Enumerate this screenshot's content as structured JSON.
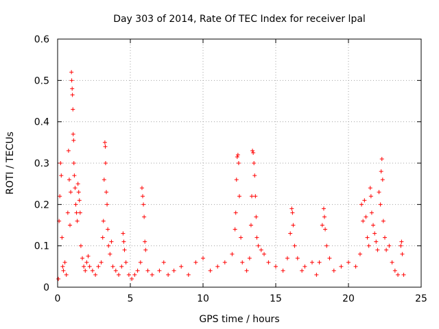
{
  "chart_data": {
    "type": "scatter",
    "title": "Day 303 of 2014, Rate Of TEC Index for receiver lpal",
    "xlabel": "GPS time / hours",
    "ylabel": "ROTI / TECUs",
    "xlim": [
      0,
      25
    ],
    "ylim": [
      0,
      0.6
    ],
    "xticks": [
      0,
      5,
      10,
      15,
      20,
      25
    ],
    "xtick_labels": [
      "0",
      "5",
      "10",
      "15",
      "20",
      "25"
    ],
    "yticks": [
      0,
      0.1,
      0.2,
      0.3,
      0.4,
      0.5,
      0.6
    ],
    "ytick_labels": [
      "0",
      "0.1",
      "0.2",
      "0.3",
      "0.4",
      "0.5",
      "0.6"
    ],
    "grid": true,
    "marker": "plus",
    "color": "#ff0000",
    "series": [
      {
        "name": "ROTI",
        "points": [
          [
            0.05,
            0.02
          ],
          [
            0.1,
            0.16
          ],
          [
            0.15,
            0.22
          ],
          [
            0.2,
            0.3
          ],
          [
            0.25,
            0.27
          ],
          [
            0.3,
            0.12
          ],
          [
            0.35,
            0.05
          ],
          [
            0.4,
            0.04
          ],
          [
            0.5,
            0.06
          ],
          [
            0.6,
            0.03
          ],
          [
            0.7,
            0.18
          ],
          [
            0.75,
            0.33
          ],
          [
            0.8,
            0.26
          ],
          [
            0.85,
            0.15
          ],
          [
            0.9,
            0.23
          ],
          [
            0.95,
            0.52
          ],
          [
            0.97,
            0.5
          ],
          [
            1.0,
            0.48
          ],
          [
            1.02,
            0.465
          ],
          [
            1.05,
            0.43
          ],
          [
            1.07,
            0.37
          ],
          [
            1.1,
            0.355
          ],
          [
            1.12,
            0.3
          ],
          [
            1.15,
            0.27
          ],
          [
            1.2,
            0.24
          ],
          [
            1.25,
            0.2
          ],
          [
            1.3,
            0.18
          ],
          [
            1.35,
            0.16
          ],
          [
            1.4,
            0.25
          ],
          [
            1.45,
            0.23
          ],
          [
            1.5,
            0.21
          ],
          [
            1.55,
            0.18
          ],
          [
            1.6,
            0.1
          ],
          [
            1.7,
            0.07
          ],
          [
            1.8,
            0.05
          ],
          [
            1.9,
            0.04
          ],
          [
            2.0,
            0.06
          ],
          [
            2.1,
            0.075
          ],
          [
            2.2,
            0.05
          ],
          [
            2.4,
            0.04
          ],
          [
            2.6,
            0.03
          ],
          [
            2.8,
            0.05
          ],
          [
            3.0,
            0.06
          ],
          [
            3.1,
            0.12
          ],
          [
            3.15,
            0.16
          ],
          [
            3.2,
            0.26
          ],
          [
            3.25,
            0.35
          ],
          [
            3.28,
            0.34
          ],
          [
            3.3,
            0.3
          ],
          [
            3.35,
            0.23
          ],
          [
            3.4,
            0.2
          ],
          [
            3.45,
            0.14
          ],
          [
            3.5,
            0.1
          ],
          [
            3.6,
            0.08
          ],
          [
            3.7,
            0.11
          ],
          [
            3.8,
            0.05
          ],
          [
            4.0,
            0.04
          ],
          [
            4.2,
            0.03
          ],
          [
            4.4,
            0.05
          ],
          [
            4.5,
            0.13
          ],
          [
            4.55,
            0.11
          ],
          [
            4.6,
            0.09
          ],
          [
            4.7,
            0.06
          ],
          [
            4.9,
            0.03
          ],
          [
            5.1,
            0.02
          ],
          [
            5.3,
            0.03
          ],
          [
            5.5,
            0.04
          ],
          [
            5.7,
            0.06
          ],
          [
            5.8,
            0.24
          ],
          [
            5.85,
            0.22
          ],
          [
            5.9,
            0.2
          ],
          [
            5.95,
            0.17
          ],
          [
            6.0,
            0.11
          ],
          [
            6.05,
            0.09
          ],
          [
            6.2,
            0.04
          ],
          [
            6.5,
            0.03
          ],
          [
            7.0,
            0.04
          ],
          [
            7.3,
            0.06
          ],
          [
            7.6,
            0.03
          ],
          [
            8.0,
            0.04
          ],
          [
            8.5,
            0.05
          ],
          [
            9.0,
            0.03
          ],
          [
            9.5,
            0.06
          ],
          [
            10.0,
            0.07
          ],
          [
            10.5,
            0.04
          ],
          [
            11.0,
            0.05
          ],
          [
            11.5,
            0.06
          ],
          [
            12.0,
            0.08
          ],
          [
            12.2,
            0.14
          ],
          [
            12.25,
            0.18
          ],
          [
            12.3,
            0.26
          ],
          [
            12.35,
            0.315
          ],
          [
            12.4,
            0.32
          ],
          [
            12.45,
            0.3
          ],
          [
            12.5,
            0.22
          ],
          [
            12.6,
            0.12
          ],
          [
            12.7,
            0.06
          ],
          [
            13.0,
            0.04
          ],
          [
            13.2,
            0.07
          ],
          [
            13.3,
            0.15
          ],
          [
            13.35,
            0.22
          ],
          [
            13.4,
            0.33
          ],
          [
            13.45,
            0.325
          ],
          [
            13.5,
            0.3
          ],
          [
            13.55,
            0.27
          ],
          [
            13.6,
            0.22
          ],
          [
            13.65,
            0.17
          ],
          [
            13.7,
            0.12
          ],
          [
            13.8,
            0.1
          ],
          [
            14.0,
            0.09
          ],
          [
            14.2,
            0.08
          ],
          [
            14.5,
            0.06
          ],
          [
            15.0,
            0.05
          ],
          [
            15.5,
            0.04
          ],
          [
            15.8,
            0.07
          ],
          [
            16.0,
            0.13
          ],
          [
            16.1,
            0.19
          ],
          [
            16.15,
            0.18
          ],
          [
            16.2,
            0.15
          ],
          [
            16.3,
            0.1
          ],
          [
            16.5,
            0.07
          ],
          [
            16.8,
            0.04
          ],
          [
            17.0,
            0.05
          ],
          [
            17.5,
            0.06
          ],
          [
            17.8,
            0.03
          ],
          [
            18.0,
            0.06
          ],
          [
            18.2,
            0.15
          ],
          [
            18.3,
            0.19
          ],
          [
            18.35,
            0.17
          ],
          [
            18.4,
            0.14
          ],
          [
            18.5,
            0.1
          ],
          [
            18.7,
            0.07
          ],
          [
            19.0,
            0.04
          ],
          [
            19.5,
            0.05
          ],
          [
            20.0,
            0.06
          ],
          [
            20.5,
            0.05
          ],
          [
            20.8,
            0.08
          ],
          [
            20.9,
            0.2
          ],
          [
            21.0,
            0.16
          ],
          [
            21.1,
            0.21
          ],
          [
            21.2,
            0.17
          ],
          [
            21.3,
            0.12
          ],
          [
            21.4,
            0.1
          ],
          [
            21.5,
            0.24
          ],
          [
            21.55,
            0.22
          ],
          [
            21.6,
            0.18
          ],
          [
            21.7,
            0.15
          ],
          [
            21.8,
            0.13
          ],
          [
            21.9,
            0.11
          ],
          [
            22.0,
            0.09
          ],
          [
            22.1,
            0.23
          ],
          [
            22.2,
            0.2
          ],
          [
            22.25,
            0.28
          ],
          [
            22.3,
            0.31
          ],
          [
            22.35,
            0.26
          ],
          [
            22.4,
            0.16
          ],
          [
            22.5,
            0.12
          ],
          [
            22.6,
            0.09
          ],
          [
            22.8,
            0.1
          ],
          [
            23.0,
            0.06
          ],
          [
            23.2,
            0.04
          ],
          [
            23.4,
            0.03
          ],
          [
            23.6,
            0.1
          ],
          [
            23.65,
            0.11
          ],
          [
            23.7,
            0.08
          ],
          [
            23.8,
            0.03
          ]
        ]
      }
    ]
  }
}
